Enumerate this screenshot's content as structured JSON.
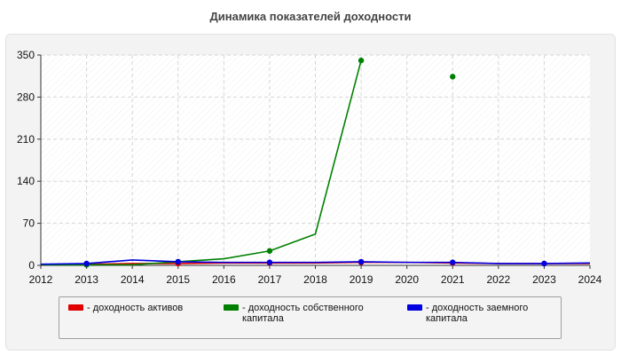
{
  "chart_data": {
    "type": "line",
    "title": "Динамика показателей доходности",
    "x": [
      "2012",
      "2013",
      "2014",
      "2015",
      "2016",
      "2017",
      "2018",
      "2019",
      "2020",
      "2021",
      "2022",
      "2023",
      "2024"
    ],
    "ylim": [
      0,
      350
    ],
    "yticks": [
      "0",
      "70",
      "140",
      "210",
      "280",
      "350"
    ],
    "grid": true,
    "legend_position": "bottom",
    "series": [
      {
        "name": "- доходность активов",
        "color": "#e00000",
        "values": [
          1,
          2,
          3,
          3,
          4,
          4,
          4,
          5,
          5,
          4,
          3,
          3,
          3
        ]
      },
      {
        "name": "- доходность собственного капитала",
        "color": "#008000",
        "values": [
          1,
          1,
          1,
          6,
          11,
          24,
          52,
          341,
          null,
          314,
          null,
          null,
          null
        ]
      },
      {
        "name": "- доходность заемного капитала",
        "color": "#0000e0",
        "values": [
          2,
          3,
          9,
          6,
          5,
          5,
          5,
          6,
          5,
          5,
          3,
          3,
          4
        ]
      }
    ]
  }
}
